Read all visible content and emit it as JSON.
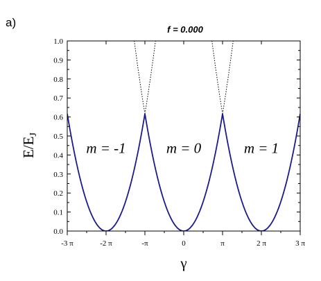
{
  "panel_label": "a)",
  "chart_data": {
    "type": "line",
    "title": "f = 0.000",
    "xlabel": "γ",
    "ylabel_main": "E/E",
    "ylabel_sub": "J",
    "xlim": [
      -9.42478,
      9.42478
    ],
    "ylim": [
      0.0,
      1.0
    ],
    "x_ticks": [
      {
        "value": -9.42478,
        "label": "-3 π"
      },
      {
        "value": -6.28319,
        "label": "-2 π"
      },
      {
        "value": -3.14159,
        "label": "-π"
      },
      {
        "value": 0,
        "label": "0"
      },
      {
        "value": 3.14159,
        "label": "π"
      },
      {
        "value": 6.28319,
        "label": "2 π"
      },
      {
        "value": 9.42478,
        "label": "3 π"
      }
    ],
    "y_ticks": [
      {
        "value": 0.0,
        "label": "0.0"
      },
      {
        "value": 0.1,
        "label": "0.1"
      },
      {
        "value": 0.2,
        "label": "0.2"
      },
      {
        "value": 0.3,
        "label": "0.3"
      },
      {
        "value": 0.4,
        "label": "0.4"
      },
      {
        "value": 0.5,
        "label": "0.5"
      },
      {
        "value": 0.6,
        "label": "0.6"
      },
      {
        "value": 0.7,
        "label": "0.7"
      },
      {
        "value": 0.8,
        "label": "0.8"
      },
      {
        "value": 0.9,
        "label": "0.9"
      },
      {
        "value": 1.0,
        "label": "1.0"
      }
    ],
    "series": [
      {
        "m": -1,
        "center": -6.28319,
        "style": "solid",
        "color": "#1a1a8c"
      },
      {
        "m": 0,
        "center": 0,
        "style": "solid",
        "color": "#1a1a8c"
      },
      {
        "m": 1,
        "center": 6.28319,
        "style": "solid",
        "color": "#1a1a8c"
      }
    ],
    "energy_scale": 0.0625,
    "dotted_color": "#000000",
    "annotations": [
      {
        "text": "m = -1",
        "x": -6.28319,
        "y": 0.41
      },
      {
        "text": "m = 0",
        "x": 0,
        "y": 0.41
      },
      {
        "text": "m = 1",
        "x": 6.28319,
        "y": 0.41
      }
    ],
    "grid": false
  }
}
